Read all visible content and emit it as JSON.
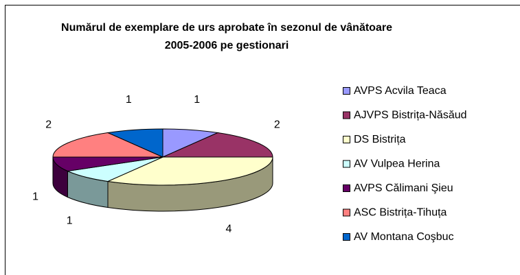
{
  "chart_data": {
    "type": "pie3d",
    "title": "Numărul de exemplare de urs aprobate în sezonul de vânătoare 2005-2006 pe gestionari",
    "categories": [
      "AVPS Acvila Teaca",
      "AJVPS Bistrița-Năsăud",
      "DS Bistrița",
      "AV Vulpea Herina",
      "AVPS Călimani Şieu",
      "ASC Bistrița-Tihuța",
      "AV Montana Coşbuc"
    ],
    "values": [
      1,
      2,
      4,
      1,
      1,
      2,
      1
    ],
    "colors": [
      "#9999ff",
      "#993366",
      "#ffffcc",
      "#ccffff",
      "#660066",
      "#ff8080",
      "#0066cc"
    ],
    "legend": "right"
  }
}
